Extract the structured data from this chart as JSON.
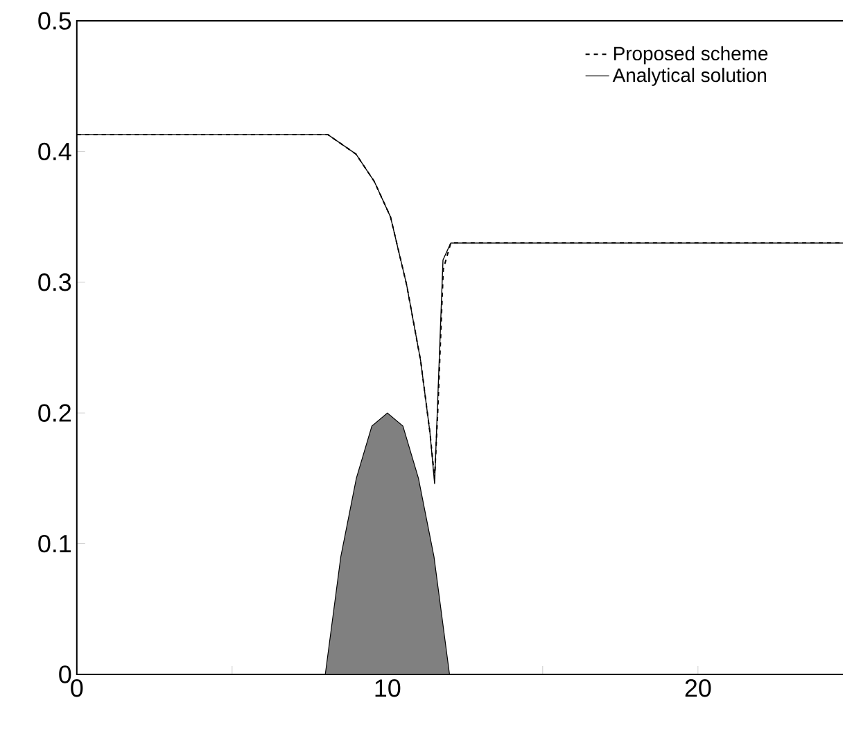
{
  "chart_data": {
    "type": "line",
    "xlim": [
      0,
      25
    ],
    "ylim": [
      0,
      0.5
    ],
    "xticks": [
      0,
      {
        "value": 5,
        "label": null
      },
      10,
      {
        "value": 15,
        "label": null
      },
      20,
      {
        "value": 25,
        "label": null
      }
    ],
    "yticks": [
      0,
      0.1,
      0.2,
      0.3,
      0.4,
      0.5
    ],
    "grid": false,
    "legend": "top right",
    "series": [
      {
        "type": "area",
        "color": "#808080",
        "x": [
          8,
          8.5,
          9,
          9.5,
          10,
          10.5,
          11,
          11.5,
          12
        ],
        "values": [
          0,
          0.09,
          0.15,
          0.19,
          0.2,
          0.19,
          0.15,
          0.09,
          0
        ]
      },
      {
        "name": "Proposed scheme",
        "line_style": "dashed",
        "color": "#000000",
        "x": [
          0,
          8.08,
          8.99,
          9.58,
          10.1,
          10.62,
          11.07,
          11.37,
          11.52,
          11.62,
          11.8,
          12.04,
          25
        ],
        "values": [
          0.413,
          0.413,
          0.398,
          0.377,
          0.35,
          0.298,
          0.24,
          0.185,
          0.15,
          0.2,
          0.31,
          0.33,
          0.33
        ]
      },
      {
        "name": "Analytical solution",
        "line_style": "solid",
        "color": "#000000",
        "x": [
          0,
          8.08,
          8.99,
          9.58,
          10.1,
          10.62,
          11.07,
          11.37,
          11.52,
          11.79,
          12.04,
          25
        ],
        "values": [
          0.413,
          0.413,
          0.398,
          0.377,
          0.35,
          0.298,
          0.24,
          0.185,
          0.146,
          0.317,
          0.33,
          0.33
        ]
      }
    ]
  }
}
